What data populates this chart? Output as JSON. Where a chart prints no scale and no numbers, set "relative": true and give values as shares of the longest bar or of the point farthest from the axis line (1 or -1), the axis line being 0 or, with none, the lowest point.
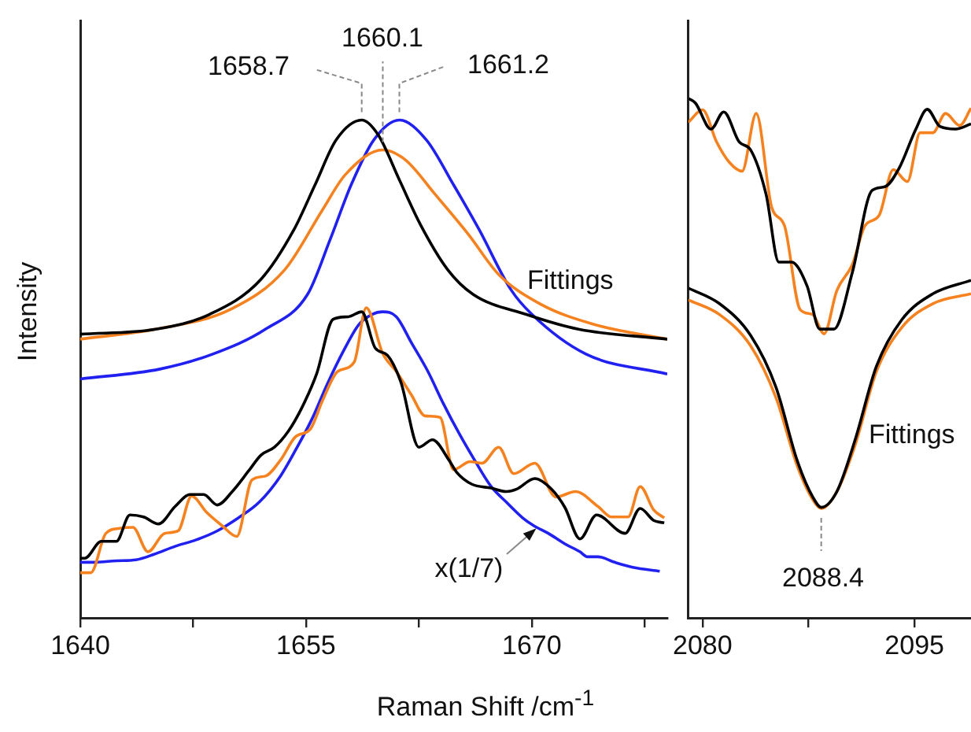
{
  "chart_data": [
    {
      "type": "line",
      "xlabel": "Raman Shift /cm$^{-1}$",
      "ylabel": "Intensity",
      "relative": true,
      "xlim": [
        1640,
        1679
      ],
      "xticks": [
        1640,
        {
          "value": 1647.5,
          "label": null
        },
        1655,
        {
          "value": 1662.5,
          "label": null
        },
        1670,
        {
          "value": 1677.5,
          "label": null
        }
      ],
      "series": [
        {
          "color": "#000000",
          "x": [
            1640,
            1645,
            1648.6,
            1652,
            1654.2,
            1655.6,
            1657,
            1658.7,
            1659.8,
            1661.2,
            1662.6,
            1664.4,
            1666.1,
            1669.6,
            1673.1,
            1679
          ],
          "values": [
            0.57,
            0.58,
            0.61,
            0.68,
            0.78,
            0.87,
            0.96,
            1.0,
            0.97,
            0.88,
            0.79,
            0.7,
            0.65,
            0.61,
            0.58,
            0.56
          ]
        },
        {
          "color": "#f5821f",
          "x": [
            1640,
            1645,
            1650,
            1653.6,
            1656.1,
            1657.6,
            1660.1,
            1661.6,
            1663.6,
            1665.8,
            1667.8,
            1670.6,
            1674.1,
            1679
          ],
          "values": [
            0.56,
            0.58,
            0.62,
            0.7,
            0.82,
            0.89,
            0.94,
            0.92,
            0.85,
            0.77,
            0.69,
            0.63,
            0.59,
            0.56
          ]
        },
        {
          "color": "#2020f0",
          "x": [
            1640,
            1645.3,
            1648.8,
            1652.3,
            1655.1,
            1656.6,
            1658,
            1659.5,
            1661.2,
            1663,
            1664.8,
            1666.5,
            1668.6,
            1670,
            1673.6,
            1679
          ],
          "values": [
            0.48,
            0.5,
            0.53,
            0.58,
            0.65,
            0.76,
            0.87,
            0.96,
            1.0,
            0.96,
            0.87,
            0.78,
            0.66,
            0.61,
            0.53,
            0.49
          ]
        },
        {
          "color": "#000000",
          "x": [
            1640,
            1640.3,
            1641.4,
            1642.4,
            1643.3,
            1644.2,
            1645.2,
            1646.3,
            1647.3,
            1648.2,
            1649.1,
            1650.1,
            1651.2,
            1652,
            1652.9,
            1653.8,
            1654.7,
            1655.7,
            1656.8,
            1657.8,
            1658.7,
            1659.6,
            1660.4,
            1661.3,
            1662.5,
            1663.4,
            1664.5,
            1665,
            1666,
            1667.3,
            1668.3,
            1669,
            1670.2,
            1671.3,
            1672.2,
            1673.2,
            1674.3,
            1676.2,
            1677.2,
            1678.1,
            1678.8
          ],
          "values": [
            0.12,
            0.12,
            0.154,
            0.154,
            0.207,
            0.203,
            0.189,
            0.224,
            0.248,
            0.248,
            0.227,
            0.254,
            0.296,
            0.327,
            0.343,
            0.374,
            0.421,
            0.49,
            0.6,
            0.605,
            0.615,
            0.542,
            0.528,
            0.474,
            0.343,
            0.358,
            0.317,
            0.293,
            0.269,
            0.261,
            0.254,
            0.259,
            0.28,
            0.259,
            0.222,
            0.159,
            0.207,
            0.17,
            0.22,
            0.196,
            0.191
          ]
        },
        {
          "color": "#f5821f",
          "x": [
            1640,
            1640.7,
            1641.7,
            1642.6,
            1643.5,
            1644.5,
            1645.6,
            1646.5,
            1647.4,
            1648.4,
            1649.4,
            1650.4,
            1651.4,
            1652.3,
            1653.3,
            1654.3,
            1655.3,
            1656.1,
            1657.1,
            1658.2,
            1659,
            1660.1,
            1661,
            1662,
            1662.9,
            1663.9,
            1664.8,
            1665.9,
            1666.7,
            1667.8,
            1668.8,
            1670.2,
            1671.6,
            1672.9,
            1674.4,
            1675.3,
            1676.4,
            1677.2,
            1678.1,
            1678.8
          ],
          "values": [
            0.091,
            0.091,
            0.17,
            0.18,
            0.182,
            0.133,
            0.17,
            0.175,
            0.245,
            0.212,
            0.186,
            0.164,
            0.277,
            0.285,
            0.317,
            0.364,
            0.38,
            0.437,
            0.495,
            0.514,
            0.623,
            0.531,
            0.495,
            0.448,
            0.406,
            0.403,
            0.298,
            0.314,
            0.311,
            0.343,
            0.29,
            0.311,
            0.243,
            0.254,
            0.224,
            0.203,
            0.203,
            0.264,
            0.217,
            0.201
          ]
        },
        {
          "color": "#2020f0",
          "x": [
            1640,
            1641,
            1642.4,
            1643.7,
            1644.9,
            1646.3,
            1647.7,
            1649.1,
            1650.5,
            1651.9,
            1653.3,
            1654.3,
            1655.4,
            1656.4,
            1657.5,
            1658.5,
            1659.4,
            1660.1,
            1661,
            1662,
            1663.1,
            1664.1,
            1665.2,
            1666.2,
            1667.3,
            1668.3,
            1669.4,
            1670.1,
            1671.1,
            1672.2,
            1673.2,
            1673.7,
            1674.4,
            1675.5,
            1676.7,
            1678.5
          ],
          "values": [
            0.112,
            0.112,
            0.115,
            0.117,
            0.128,
            0.144,
            0.157,
            0.175,
            0.201,
            0.233,
            0.285,
            0.337,
            0.4,
            0.469,
            0.537,
            0.589,
            0.61,
            0.615,
            0.605,
            0.553,
            0.495,
            0.432,
            0.369,
            0.317,
            0.264,
            0.233,
            0.201,
            0.186,
            0.17,
            0.149,
            0.133,
            0.123,
            0.123,
            0.112,
            0.102,
            0.094
          ]
        }
      ],
      "annotations": [
        {
          "text": "1658.7",
          "x": 1658.7,
          "y": 1.0
        },
        {
          "text": "1660.1",
          "x": 1660.1,
          "y": 0.94
        },
        {
          "text": "1661.2",
          "x": 1661.2,
          "y": 1.0
        },
        "Fittings",
        {
          "text": "x(1/7)",
          "x": 1670.3,
          "y": 0.18
        }
      ]
    },
    {
      "type": "line",
      "relative": true,
      "xlim": [
        2079,
        2099
      ],
      "xticks": [
        2080,
        {
          "value": 2087.5,
          "label": null
        },
        2095
      ],
      "series": [
        {
          "color": "#000000",
          "x": [
            2079,
            2079.5,
            2080.6,
            2081.5,
            2082.6,
            2083.4,
            2084.5,
            2085.4,
            2086.3,
            2087.4,
            2088.3,
            2089.3,
            2090.6,
            2092,
            2092.9,
            2093.9,
            2095.1,
            2095.9,
            2096.8,
            2097.9,
            2099
          ],
          "values": [
            1.0,
            0.991,
            0.941,
            0.974,
            0.916,
            0.901,
            0.815,
            0.685,
            0.685,
            0.639,
            0.556,
            0.556,
            0.665,
            0.823,
            0.83,
            0.865,
            0.941,
            0.979,
            0.946,
            0.941,
            0.951
          ]
        },
        {
          "color": "#f5821f",
          "x": [
            2079,
            2080,
            2081,
            2081.9,
            2082.8,
            2083.8,
            2084.9,
            2085.8,
            2086.9,
            2087.8,
            2088.6,
            2089.5,
            2090.6,
            2091.5,
            2092.5,
            2093.5,
            2094.5,
            2095.4,
            2096.3,
            2097.2,
            2098.2,
            2099
          ],
          "values": [
            0.954,
            0.978,
            0.916,
            0.877,
            0.86,
            0.971,
            0.79,
            0.755,
            0.594,
            0.584,
            0.547,
            0.63,
            0.68,
            0.755,
            0.775,
            0.863,
            0.84,
            0.934,
            0.934,
            0.971,
            0.948,
            0.981
          ]
        },
        {
          "color": "#000000",
          "x": [
            2079,
            2081.2,
            2083.4,
            2085.2,
            2086.7,
            2087.8,
            2088.4,
            2089.5,
            2090.8,
            2092.3,
            2094.1,
            2096.3,
            2099
          ],
          "values": [
            0.635,
            0.605,
            0.544,
            0.444,
            0.303,
            0.233,
            0.213,
            0.243,
            0.343,
            0.484,
            0.574,
            0.624,
            0.65
          ]
        },
        {
          "color": "#f5821f",
          "x": [
            2079,
            2081.2,
            2083.4,
            2085.2,
            2086.7,
            2087.8,
            2088.4,
            2089.5,
            2090.8,
            2092.3,
            2094.1,
            2096.3,
            2099
          ],
          "values": [
            0.612,
            0.584,
            0.524,
            0.424,
            0.293,
            0.228,
            0.211,
            0.243,
            0.333,
            0.474,
            0.559,
            0.605,
            0.624
          ]
        }
      ],
      "annotations": [
        "Fittings",
        {
          "text": "2088.4",
          "x": 2088.4,
          "y": 0.211
        }
      ]
    }
  ]
}
